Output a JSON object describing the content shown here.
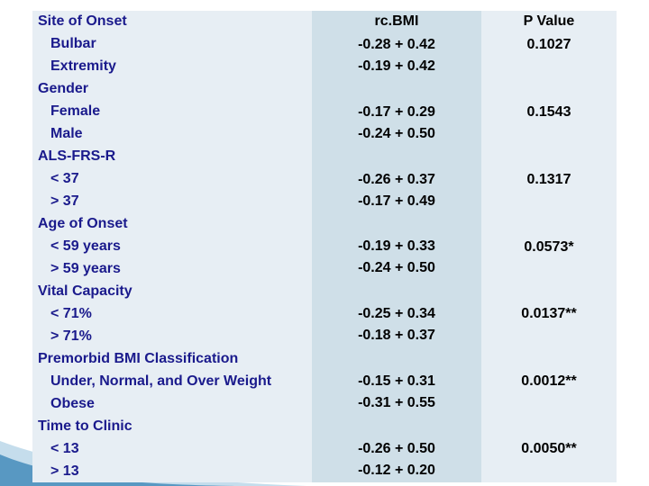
{
  "table": {
    "columns": [
      "",
      "rc.BMI",
      "P Value"
    ],
    "rows": [
      {
        "label": "Site of Onset",
        "level": 0,
        "value": "",
        "p": ""
      },
      {
        "label": "Bulbar",
        "level": 1,
        "value": "-0.28 + 0.42",
        "p": ""
      },
      {
        "label": "Extremity",
        "level": 1,
        "value": "-0.19 + 0.42",
        "p": ""
      },
      {
        "label": "Gender",
        "level": 0,
        "value": "",
        "p": ""
      },
      {
        "label": "Female",
        "level": 1,
        "value": "-0.17 + 0.29",
        "p": ""
      },
      {
        "label": "Male",
        "level": 1,
        "value": "-0.24 + 0.50",
        "p": ""
      },
      {
        "label": "ALS-FRS-R",
        "level": 0,
        "value": "",
        "p": ""
      },
      {
        "label": "< 37",
        "level": 1,
        "value": "-0.26 + 0.37",
        "p": ""
      },
      {
        "label": "> 37",
        "level": 1,
        "value": "-0.17 + 0.49",
        "p": ""
      },
      {
        "label": "Age of Onset",
        "level": 0,
        "value": "",
        "p": ""
      },
      {
        "label": "< 59 years",
        "level": 1,
        "value": "-0.19 + 0.33",
        "p": ""
      },
      {
        "label": "> 59 years",
        "level": 1,
        "value": "-0.24 + 0.50",
        "p": ""
      },
      {
        "label": "Vital Capacity",
        "level": 0,
        "value": "",
        "p": ""
      },
      {
        "label": "< 71%",
        "level": 1,
        "value": "-0.25 + 0.34",
        "p": ""
      },
      {
        "label": "> 71%",
        "level": 1,
        "value": "-0.18 + 0.37",
        "p": ""
      },
      {
        "label": "Premorbid BMI Classification",
        "level": 0,
        "value": "",
        "p": ""
      },
      {
        "label": "Under, Normal, and Over  Weight",
        "level": 1,
        "value": "-0.15 + 0.31",
        "p": ""
      },
      {
        "label": "Obese",
        "level": 1,
        "value": "-0.31 + 0.55",
        "p": ""
      },
      {
        "label": "Time to Clinic",
        "level": 0,
        "value": "",
        "p": ""
      },
      {
        "label": "< 13",
        "level": 1,
        "value": "-0.26 + 0.50",
        "p": ""
      },
      {
        "label": "> 13",
        "level": 1,
        "value": "-0.12 + 0.20",
        "p": ""
      }
    ],
    "p_values": [
      "0.1027",
      "0.1543",
      "0.1317",
      "0.0573*",
      "0.0137**",
      "0.0012**",
      "0.0050**"
    ]
  },
  "colors": {
    "label_text": "#1a1a8c",
    "row_bg": "#e7eef4",
    "value_bg": "#cfdfe8",
    "accent_decoration": "#2a7ab0"
  }
}
